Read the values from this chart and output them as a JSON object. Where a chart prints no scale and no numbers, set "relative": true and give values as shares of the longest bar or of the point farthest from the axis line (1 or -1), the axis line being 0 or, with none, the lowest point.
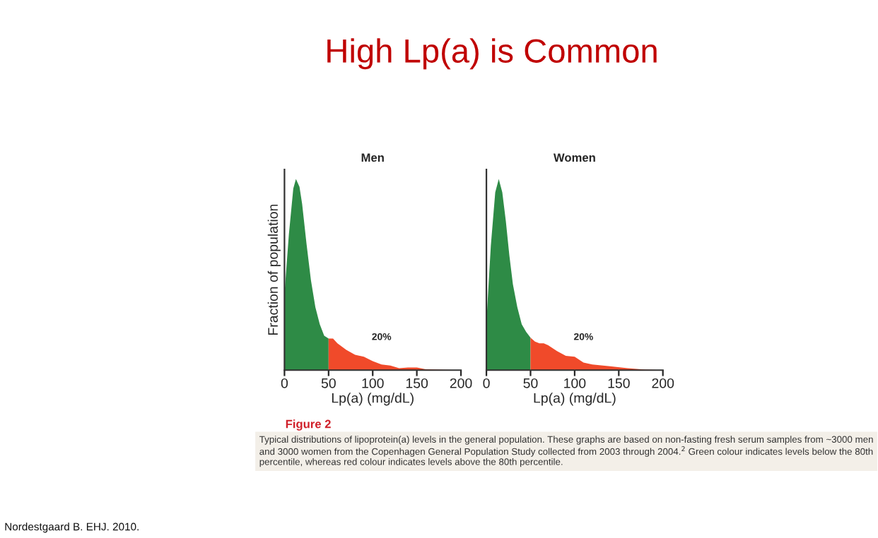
{
  "chart_data": [
    {
      "type": "area",
      "title": "Men",
      "xlabel": "Lp(a) (mg/dL)",
      "ylabel": "Fraction of population",
      "relative": true,
      "xlim": [
        0,
        200
      ],
      "xticks": [
        0,
        50,
        100,
        150,
        200
      ],
      "series": [
        {
          "color": "#2e8b46",
          "x": [
            0,
            5,
            10,
            13,
            17,
            20,
            25,
            30,
            35,
            40,
            45,
            50
          ],
          "values": [
            0.4,
            0.71,
            0.95,
            1.0,
            0.96,
            0.87,
            0.66,
            0.47,
            0.33,
            0.24,
            0.18,
            0.165
          ]
        },
        {
          "color": "#f04a2a",
          "x": [
            50,
            55,
            60,
            70,
            80,
            90,
            100,
            110,
            120,
            130,
            140,
            150,
            160,
            180,
            200
          ],
          "values": [
            0.165,
            0.165,
            0.14,
            0.106,
            0.08,
            0.07,
            0.047,
            0.03,
            0.024,
            0.01,
            0.014,
            0.014,
            0.005,
            0.002,
            0
          ]
        }
      ],
      "annotations": [
        "20%",
        "High Lp(a) is Common",
        "Figure 2",
        "Typical distributions of lipoprotein(a) levels in the general population. These graphs are based on non-fasting fresh serum samples from ~3000 men and 3000 women from the Copenhagen General Population Study collected from 2003 through 2004.$^{2}$ Green colour indicates levels below the 80th percentile, whereas red colour indicates levels above the 80th percentile.",
        "Nordestgaard B. EHJ. 2010."
      ]
    },
    {
      "type": "area",
      "title": "Women",
      "xlabel": "Lp(a) (mg/dL)",
      "relative": true,
      "xlim": [
        0,
        200
      ],
      "xticks": [
        0,
        50,
        100,
        150,
        200
      ],
      "series": [
        {
          "color": "#2e8b46",
          "x": [
            0,
            5,
            10,
            14,
            18,
            22,
            26,
            30,
            35,
            40,
            45,
            50
          ],
          "values": [
            0.25,
            0.65,
            0.93,
            1.0,
            0.93,
            0.78,
            0.6,
            0.45,
            0.33,
            0.24,
            0.2,
            0.17
          ]
        },
        {
          "color": "#f04a2a",
          "x": [
            50,
            55,
            60,
            65,
            70,
            80,
            90,
            100,
            110,
            120,
            140,
            160,
            180,
            200
          ],
          "values": [
            0.17,
            0.15,
            0.14,
            0.14,
            0.13,
            0.1,
            0.075,
            0.07,
            0.04,
            0.03,
            0.02,
            0.01,
            0.003,
            0
          ]
        }
      ],
      "annotations": [
        "20%"
      ]
    }
  ]
}
